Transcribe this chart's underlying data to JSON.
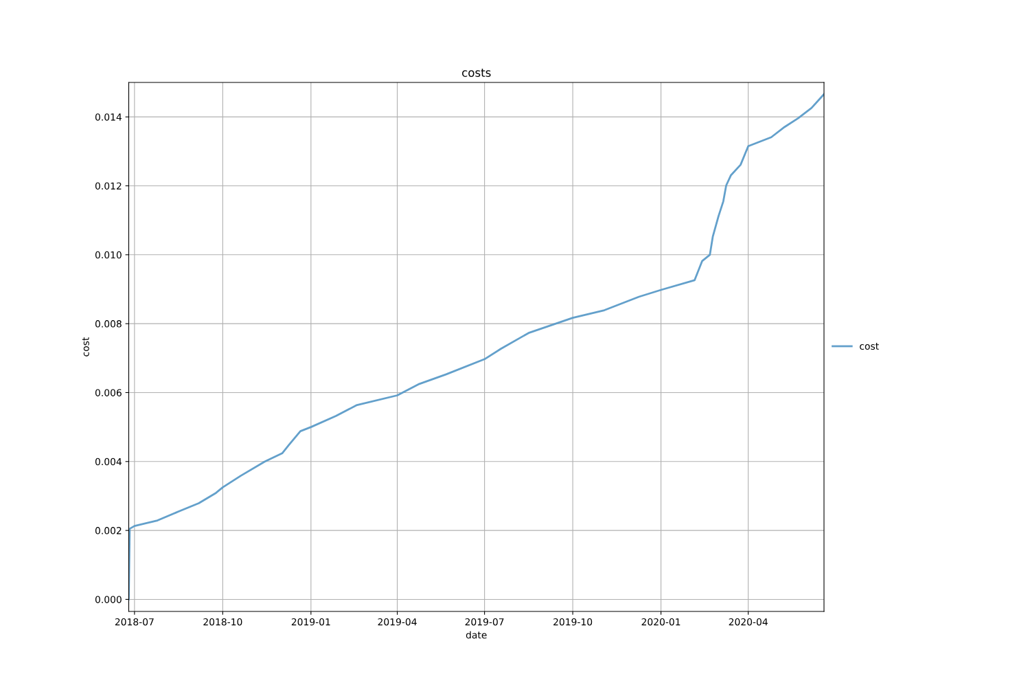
{
  "chart_data": {
    "type": "line",
    "title": "costs",
    "xlabel": "date",
    "ylabel": "cost",
    "x": [
      "2018-06-25",
      "2018-06-26",
      "2018-07-01",
      "2018-07-25",
      "2018-08-16",
      "2018-09-06",
      "2018-09-24",
      "2018-10-01",
      "2018-10-20",
      "2018-11-14",
      "2018-12-02",
      "2018-12-09",
      "2018-12-21",
      "2019-01-01",
      "2019-01-27",
      "2019-02-18",
      "2019-04-01",
      "2019-04-23",
      "2019-05-22",
      "2019-07-01",
      "2019-07-18",
      "2019-08-16",
      "2019-10-01",
      "2019-11-03",
      "2019-12-09",
      "2020-01-01",
      "2020-02-05",
      "2020-02-13",
      "2020-02-21",
      "2020-02-24",
      "2020-03-01",
      "2020-03-06",
      "2020-03-09",
      "2020-03-14",
      "2020-03-24",
      "2020-04-01",
      "2020-04-25",
      "2020-05-09",
      "2020-05-23",
      "2020-06-06",
      "2020-06-19"
    ],
    "series": [
      {
        "name": "cost",
        "color": "#5b9bc8",
        "values": [
          0,
          0.00205,
          0.00213,
          0.00229,
          0.00255,
          0.00279,
          0.00309,
          0.00325,
          0.00359,
          0.004,
          0.00424,
          0.00448,
          0.00488,
          0.005,
          0.00532,
          0.00564,
          0.00592,
          0.00624,
          0.00653,
          0.00697,
          0.00727,
          0.00773,
          0.00817,
          0.00839,
          0.00878,
          0.00898,
          0.00926,
          0.00982,
          0.01,
          0.01052,
          0.01112,
          0.01155,
          0.01201,
          0.01231,
          0.01261,
          0.01315,
          0.01341,
          0.01371,
          0.01396,
          0.01426,
          0.01466
        ]
      }
    ],
    "xlim": [
      "2018-06-25",
      "2020-06-19"
    ],
    "xticks": [
      {
        "value": "2018-07-01",
        "label": "2018-07"
      },
      {
        "value": "2018-10-01",
        "label": "2018-10"
      },
      {
        "value": "2019-01-01",
        "label": "2019-01"
      },
      {
        "value": "2019-04-01",
        "label": "2019-04"
      },
      {
        "value": "2019-07-01",
        "label": "2019-07"
      },
      {
        "value": "2019-10-01",
        "label": "2019-10"
      },
      {
        "value": "2020-01-01",
        "label": "2020-01"
      },
      {
        "value": "2020-04-01",
        "label": "2020-04"
      }
    ],
    "ylim": [
      -0.00035,
      0.015
    ],
    "yticks": [
      {
        "value": 0,
        "label": "0.000"
      },
      {
        "value": 0.002,
        "label": "0.002"
      },
      {
        "value": 0.004,
        "label": "0.004"
      },
      {
        "value": 0.006,
        "label": "0.006"
      },
      {
        "value": 0.008,
        "label": "0.008"
      },
      {
        "value": 0.01,
        "label": "0.010"
      },
      {
        "value": 0.012,
        "label": "0.012"
      },
      {
        "value": 0.014,
        "label": "0.014"
      }
    ],
    "grid": true,
    "legend": "right",
    "line_style": "solid",
    "marker": "none"
  }
}
